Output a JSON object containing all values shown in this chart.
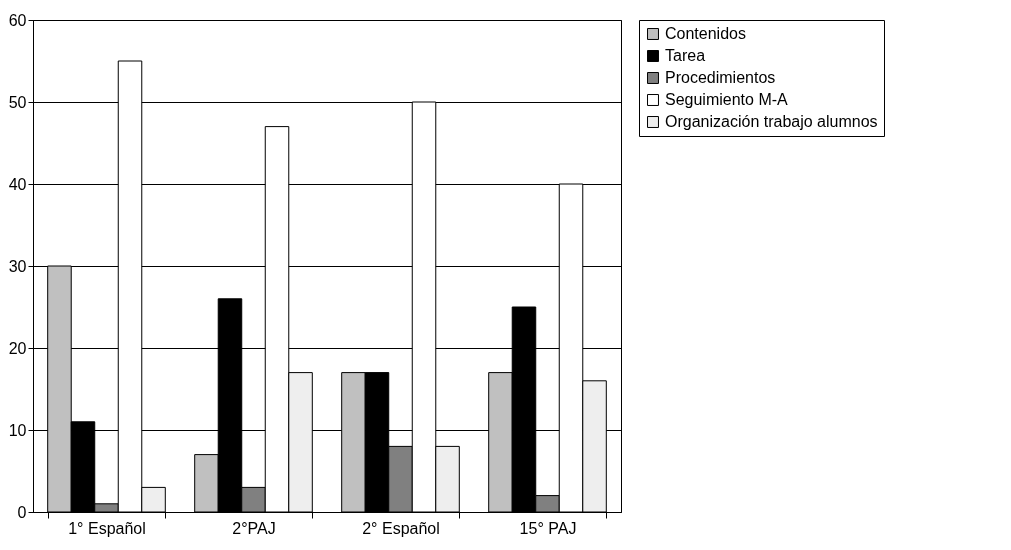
{
  "chart_data": {
    "type": "bar",
    "categories": [
      "1° Español",
      "2°PAJ",
      "2° Español",
      "15° PAJ"
    ],
    "series": [
      {
        "name": "Contenidos",
        "color": "#c0c0c0",
        "values": [
          30,
          7,
          17,
          17
        ]
      },
      {
        "name": "Tarea",
        "color": "#000000",
        "values": [
          11,
          26,
          17,
          25
        ]
      },
      {
        "name": "Procedimientos",
        "color": "#808080",
        "values": [
          1,
          3,
          8,
          2
        ]
      },
      {
        "name": "Seguimiento M-A",
        "color": "#ffffff",
        "values": [
          55,
          47,
          50,
          40
        ]
      },
      {
        "name": "Organización trabajo alumnos",
        "color": "#eeeeee",
        "values": [
          3,
          17,
          8,
          16
        ]
      }
    ],
    "ylim": [
      0,
      60
    ],
    "yticks": [
      0,
      10,
      20,
      30,
      40,
      50,
      60
    ],
    "grid": "y",
    "legend": "right"
  }
}
